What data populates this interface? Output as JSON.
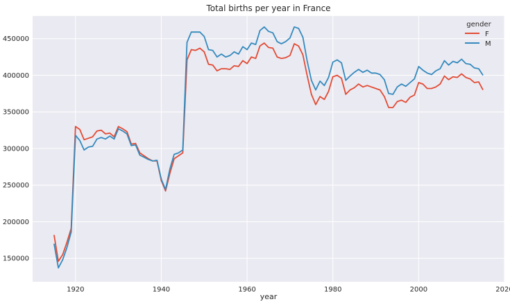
{
  "chart_data": {
    "type": "line",
    "title": "Total births per year in France",
    "xlabel": "year",
    "ylabel": "",
    "xlim": [
      1910,
      2020
    ],
    "ylim": [
      118000,
      481000
    ],
    "x_ticks": [
      1920,
      1940,
      1960,
      1980,
      2000,
      2020
    ],
    "x_tick_labels": [
      "1920",
      "1940",
      "1960",
      "1980",
      "2000",
      "2020"
    ],
    "y_ticks": [
      150000,
      200000,
      250000,
      300000,
      350000,
      400000,
      450000
    ],
    "y_tick_labels": [
      "150000",
      "200000",
      "250000",
      "300000",
      "350000",
      "400000",
      "450000"
    ],
    "grid": true,
    "legend": {
      "title": "gender",
      "position": "top-right"
    },
    "colors": {
      "background": "#eaeaf2",
      "grid": "#ffffff",
      "F": "#e24a33",
      "M": "#348abd"
    },
    "series": [
      {
        "name": "F",
        "color": "#e24a33",
        "x": [
          1915,
          1916,
          1917,
          1918,
          1919,
          1920,
          1921,
          1922,
          1923,
          1924,
          1925,
          1926,
          1927,
          1928,
          1929,
          1930,
          1931,
          1932,
          1933,
          1934,
          1935,
          1936,
          1937,
          1938,
          1939,
          1940,
          1941,
          1942,
          1943,
          1944,
          1945,
          1946,
          1947,
          1948,
          1949,
          1950,
          1951,
          1952,
          1953,
          1954,
          1955,
          1956,
          1957,
          1958,
          1959,
          1960,
          1961,
          1962,
          1963,
          1964,
          1965,
          1966,
          1967,
          1968,
          1969,
          1970,
          1971,
          1972,
          1973,
          1974,
          1975,
          1976,
          1977,
          1978,
          1979,
          1980,
          1981,
          1982,
          1983,
          1984,
          1985,
          1986,
          1987,
          1988,
          1989,
          1990,
          1991,
          1992,
          1993,
          1994,
          1995,
          1996,
          1997,
          1998,
          1999,
          2000,
          2001,
          2002,
          2003,
          2004,
          2005,
          2006,
          2007,
          2008,
          2009,
          2010,
          2011,
          2012,
          2013,
          2014,
          2015
        ],
        "values": [
          182000,
          146000,
          155000,
          172000,
          191000,
          330000,
          326000,
          312000,
          314000,
          316000,
          324000,
          325000,
          320000,
          321000,
          316000,
          330000,
          327000,
          323000,
          306000,
          307000,
          294000,
          290000,
          286000,
          283000,
          283000,
          256000,
          242000,
          266000,
          286000,
          290000,
          294000,
          421000,
          435000,
          434000,
          437000,
          432000,
          415000,
          414000,
          406000,
          409000,
          409000,
          408000,
          413000,
          412000,
          420000,
          416000,
          425000,
          423000,
          440000,
          444000,
          438000,
          437000,
          425000,
          423000,
          424000,
          427000,
          443000,
          440000,
          428000,
          400000,
          374000,
          360000,
          371000,
          367000,
          378000,
          398000,
          400000,
          396000,
          374000,
          380000,
          383000,
          388000,
          384000,
          386000,
          384000,
          382000,
          380000,
          371000,
          356000,
          356000,
          364000,
          366000,
          363000,
          370000,
          373000,
          390000,
          388000,
          382000,
          382000,
          384000,
          388000,
          399000,
          394000,
          398000,
          397000,
          402000,
          397000,
          395000,
          390000,
          391000,
          380000
        ]
      },
      {
        "name": "M",
        "color": "#348abd",
        "x": [
          1915,
          1916,
          1917,
          1918,
          1919,
          1920,
          1921,
          1922,
          1923,
          1924,
          1925,
          1926,
          1927,
          1928,
          1929,
          1930,
          1931,
          1932,
          1933,
          1934,
          1935,
          1936,
          1937,
          1938,
          1939,
          1940,
          1941,
          1942,
          1943,
          1944,
          1945,
          1946,
          1947,
          1948,
          1949,
          1950,
          1951,
          1952,
          1953,
          1954,
          1955,
          1956,
          1957,
          1958,
          1959,
          1960,
          1961,
          1962,
          1963,
          1964,
          1965,
          1966,
          1967,
          1968,
          1969,
          1970,
          1971,
          1972,
          1973,
          1974,
          1975,
          1976,
          1977,
          1978,
          1979,
          1980,
          1981,
          1982,
          1983,
          1984,
          1985,
          1986,
          1987,
          1988,
          1989,
          1990,
          1991,
          1992,
          1993,
          1994,
          1995,
          1996,
          1997,
          1998,
          1999,
          2000,
          2001,
          2002,
          2003,
          2004,
          2005,
          2006,
          2007,
          2008,
          2009,
          2010,
          2011,
          2012,
          2013,
          2014,
          2015
        ],
        "values": [
          170000,
          137000,
          148000,
          165000,
          186000,
          318000,
          311000,
          298000,
          302000,
          303000,
          313000,
          315000,
          313000,
          317000,
          313000,
          327000,
          324000,
          320000,
          304000,
          305000,
          291000,
          288000,
          285000,
          283000,
          284000,
          258000,
          244000,
          272000,
          292000,
          294000,
          298000,
          445000,
          459000,
          459000,
          459000,
          453000,
          435000,
          434000,
          425000,
          429000,
          425000,
          427000,
          432000,
          429000,
          439000,
          435000,
          444000,
          442000,
          461000,
          466000,
          460000,
          458000,
          446000,
          443000,
          446000,
          451000,
          466000,
          464000,
          452000,
          420000,
          393000,
          380000,
          392000,
          386000,
          397000,
          418000,
          421000,
          417000,
          393000,
          399000,
          404000,
          408000,
          404000,
          407000,
          403000,
          403000,
          401000,
          394000,
          375000,
          374000,
          384000,
          388000,
          385000,
          390000,
          395000,
          412000,
          407000,
          403000,
          401000,
          406000,
          409000,
          420000,
          414000,
          419000,
          417000,
          422000,
          416000,
          415000,
          410000,
          409000,
          400000
        ]
      }
    ]
  }
}
